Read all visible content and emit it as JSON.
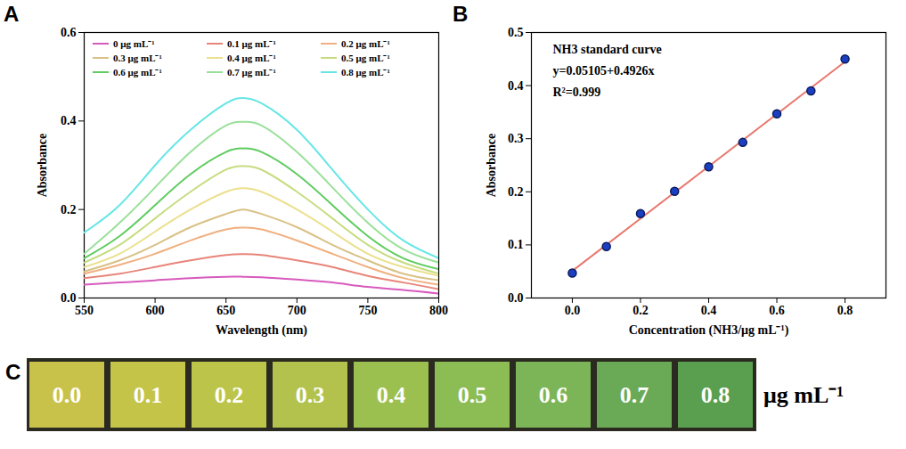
{
  "chart_data": [
    {
      "panel": "A",
      "type": "line",
      "xlabel": "Wavelength (nm)",
      "ylabel": "Absorbance",
      "x": [
        550,
        575,
        600,
        625,
        650,
        662,
        675,
        700,
        725,
        750,
        775,
        800
      ],
      "series": [
        {
          "name": "0 μg mL⁻¹",
          "color": "#d75bbd",
          "values": [
            0.03,
            0.035,
            0.04,
            0.045,
            0.048,
            0.048,
            0.047,
            0.042,
            0.035,
            0.025,
            0.018,
            0.01
          ]
        },
        {
          "name": "0.1 μg mL⁻¹",
          "color": "#e8857a",
          "values": [
            0.045,
            0.055,
            0.07,
            0.085,
            0.097,
            0.099,
            0.097,
            0.085,
            0.07,
            0.05,
            0.035,
            0.02
          ]
        },
        {
          "name": "0.2 μg mL⁻¹",
          "color": "#f0b080",
          "values": [
            0.055,
            0.075,
            0.1,
            0.13,
            0.155,
            0.159,
            0.155,
            0.13,
            0.1,
            0.07,
            0.045,
            0.03
          ]
        },
        {
          "name": "0.3 μg mL⁻¹",
          "color": "#d9c185",
          "values": [
            0.06,
            0.085,
            0.12,
            0.16,
            0.19,
            0.2,
            0.19,
            0.16,
            0.12,
            0.085,
            0.055,
            0.04
          ]
        },
        {
          "name": "0.4 μg mL⁻¹",
          "color": "#ebe08e",
          "values": [
            0.07,
            0.1,
            0.15,
            0.2,
            0.24,
            0.248,
            0.24,
            0.2,
            0.15,
            0.1,
            0.07,
            0.05
          ]
        },
        {
          "name": "0.5 μg mL⁻¹",
          "color": "#c6dc80",
          "values": [
            0.08,
            0.12,
            0.18,
            0.24,
            0.29,
            0.298,
            0.29,
            0.24,
            0.18,
            0.12,
            0.08,
            0.055
          ]
        },
        {
          "name": "0.6 μg mL⁻¹",
          "color": "#5fcc5f",
          "values": [
            0.09,
            0.14,
            0.21,
            0.28,
            0.33,
            0.338,
            0.33,
            0.28,
            0.21,
            0.14,
            0.09,
            0.065
          ]
        },
        {
          "name": "0.7 μg mL⁻¹",
          "color": "#99e099",
          "values": [
            0.1,
            0.17,
            0.25,
            0.33,
            0.39,
            0.398,
            0.39,
            0.33,
            0.25,
            0.17,
            0.11,
            0.08
          ]
        },
        {
          "name": "0.8 μg mL⁻¹",
          "color": "#66e6e6",
          "values": [
            0.148,
            0.21,
            0.3,
            0.38,
            0.44,
            0.452,
            0.44,
            0.38,
            0.29,
            0.2,
            0.13,
            0.09
          ]
        }
      ],
      "xlim": [
        550,
        800
      ],
      "xticks": [
        550,
        600,
        650,
        700,
        750,
        800
      ],
      "ylim": [
        0,
        0.6
      ],
      "yticks": [
        {
          "value": 0,
          "label": "0.0"
        },
        {
          "value": 0.2,
          "label": "0.2"
        },
        {
          "value": 0.4,
          "label": "0.4"
        },
        {
          "value": 0.6,
          "label": "0.6"
        }
      ],
      "legend": "top"
    },
    {
      "panel": "B",
      "type": "scatter",
      "xlabel": "Concentration (NH3/μg mL⁻¹)",
      "ylabel": "Absorbance",
      "annotations": [
        "NH3 standard curve",
        "y=0.05105+0.4926x",
        "R²=0.999"
      ],
      "series": [
        {
          "type": "line",
          "color": "#e8786e",
          "x": [
            0,
            0.8
          ],
          "values": [
            0.051,
            0.445
          ]
        },
        {
          "type": "scatter",
          "color": "#1c3fc2",
          "marker": "circle",
          "x": [
            0,
            0.1,
            0.2,
            0.3,
            0.4,
            0.5,
            0.6,
            0.7,
            0.8
          ],
          "values": [
            0.047,
            0.097,
            0.159,
            0.201,
            0.247,
            0.293,
            0.347,
            0.39,
            0.45
          ]
        }
      ],
      "xlim": [
        -0.12,
        0.92
      ],
      "xticks": [
        {
          "value": 0,
          "label": "0.0"
        },
        {
          "value": 0.2,
          "label": "0.2"
        },
        {
          "value": 0.4,
          "label": "0.4"
        },
        {
          "value": 0.6,
          "label": "0.6"
        },
        {
          "value": 0.8,
          "label": "0.8"
        }
      ],
      "ylim": [
        0,
        0.5
      ],
      "yticks": [
        {
          "value": 0,
          "label": "0.0"
        },
        {
          "value": 0.1,
          "label": "0.1"
        },
        {
          "value": 0.2,
          "label": "0.2"
        },
        {
          "value": 0.3,
          "label": "0.3"
        },
        {
          "value": 0.4,
          "label": "0.4"
        },
        {
          "value": 0.5,
          "label": "0.5"
        }
      ]
    },
    {
      "panel": "C",
      "type": "image",
      "categories": [
        "0.0",
        "0.1",
        "0.2",
        "0.3",
        "0.4",
        "0.5",
        "0.6",
        "0.7",
        "0.8"
      ],
      "colors": [
        "#c9c24a",
        "#c3c448",
        "#bcc44a",
        "#b2c24c",
        "#9cc050",
        "#8cbc54",
        "#7cb458",
        "#6aaa56",
        "#5a9e50"
      ],
      "annotation": "μg mL⁻¹"
    }
  ]
}
